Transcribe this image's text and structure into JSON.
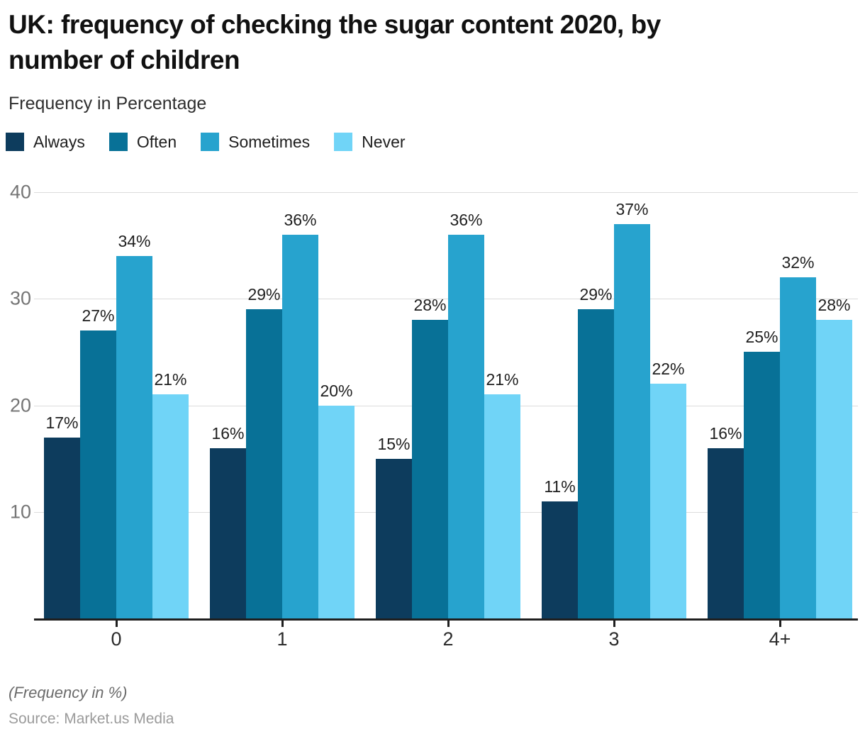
{
  "header": {
    "title_lines": [
      "UK: frequency of checking the sugar content 2020, by",
      "number of children"
    ],
    "subtitle": "Frequency in Percentage"
  },
  "legend": {
    "items": [
      {
        "label": "Always",
        "color": "#0d3c5d"
      },
      {
        "label": "Often",
        "color": "#087197"
      },
      {
        "label": "Sometimes",
        "color": "#27a3ce"
      },
      {
        "label": "Never",
        "color": "#70d4f7"
      }
    ]
  },
  "chart_data": {
    "type": "bar",
    "title": "UK: frequency of checking the sugar content 2020, by number of children",
    "subtitle": "Frequency in Percentage",
    "categories": [
      "0",
      "1",
      "2",
      "3",
      "4+"
    ],
    "series": [
      {
        "name": "Always",
        "color": "#0d3c5d",
        "values": [
          17,
          16,
          15,
          11,
          16
        ]
      },
      {
        "name": "Often",
        "color": "#087197",
        "values": [
          27,
          29,
          28,
          29,
          25
        ]
      },
      {
        "name": "Sometimes",
        "color": "#27a3ce",
        "values": [
          34,
          36,
          36,
          37,
          32
        ]
      },
      {
        "name": "Never",
        "color": "#70d4f7",
        "values": [
          21,
          20,
          21,
          22,
          28
        ]
      }
    ],
    "value_suffix": "%",
    "xlabel": "",
    "ylabel": "Frequency in Percentage",
    "ylim": [
      0,
      40
    ],
    "yticks": [
      10,
      20,
      30,
      40
    ],
    "grid": true,
    "legend_position": "top",
    "data_labels": true
  },
  "footer": {
    "note": "(Frequency in %)",
    "source": "Source: Market.us Media"
  },
  "colors": {
    "grid": "#dcdcdc",
    "axis": "#1f1f1f",
    "y_tick_label": "#757575",
    "data_label": "#1f1f1f"
  }
}
